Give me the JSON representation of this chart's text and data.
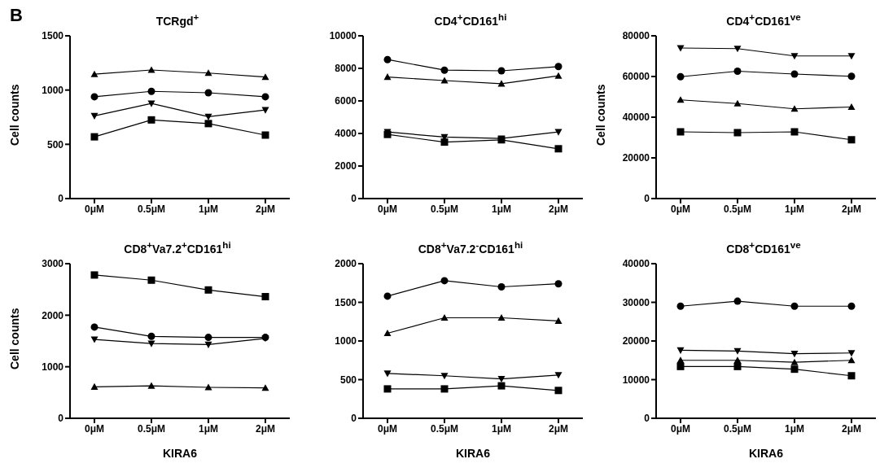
{
  "chart_data": [
    {
      "type": "line",
      "title": "TCRgd$^{+}$",
      "ylabel": "Cell counts",
      "annotations": [
        "B"
      ],
      "categories": [
        "0μM",
        "0.5μM",
        "1μM",
        "2μM"
      ],
      "ylim": [
        0,
        1500
      ],
      "yticks": [
        0,
        500,
        1000,
        1500
      ],
      "grid": false,
      "legend": false,
      "series": [
        {
          "color": "#000000",
          "marker": "triangle",
          "values": [
            1146,
            1185,
            1157,
            1120
          ]
        },
        {
          "color": "#000000",
          "marker": "circle",
          "values": [
            938,
            988,
            975,
            938
          ]
        },
        {
          "color": "#000000",
          "marker": "triangle-down",
          "values": [
            762,
            876,
            754,
            816
          ]
        },
        {
          "color": "#000000",
          "marker": "square",
          "values": [
            569,
            725,
            691,
            585
          ]
        }
      ]
    },
    {
      "type": "line",
      "title": "CD4$^{+}$CD161$^{hi}$",
      "categories": [
        "0μM",
        "0.5μM",
        "1μM",
        "2μM"
      ],
      "ylim": [
        0,
        10000
      ],
      "yticks": [
        0,
        2000,
        4000,
        6000,
        8000,
        10000
      ],
      "grid": false,
      "legend": false,
      "series": [
        {
          "color": "#000000",
          "marker": "circle",
          "values": [
            8540,
            7890,
            7850,
            8110
          ]
        },
        {
          "color": "#000000",
          "marker": "triangle",
          "values": [
            7470,
            7250,
            7060,
            7540
          ]
        },
        {
          "color": "#000000",
          "marker": "triangle-down",
          "values": [
            4090,
            3780,
            3690,
            4090
          ]
        },
        {
          "color": "#000000",
          "marker": "square",
          "values": [
            3940,
            3470,
            3610,
            3060
          ]
        }
      ]
    },
    {
      "type": "line",
      "title": "CD4$^{+}$CD161$^{ve}$",
      "ylabel": "Cell counts",
      "categories": [
        "0μM",
        "0.5μM",
        "1μM",
        "2μM"
      ],
      "ylim": [
        0,
        80000
      ],
      "yticks": [
        0,
        20000,
        40000,
        60000,
        80000
      ],
      "grid": false,
      "legend": false,
      "series": [
        {
          "color": "#000000",
          "marker": "triangle-down",
          "values": [
            74000,
            73700,
            70100,
            70100
          ]
        },
        {
          "color": "#000000",
          "marker": "circle",
          "values": [
            59900,
            62600,
            61200,
            60100
          ]
        },
        {
          "color": "#000000",
          "marker": "triangle",
          "values": [
            48500,
            46700,
            44100,
            45000
          ]
        },
        {
          "color": "#000000",
          "marker": "square",
          "values": [
            32800,
            32400,
            32800,
            28900
          ]
        }
      ]
    },
    {
      "type": "line",
      "title": "CD8$^{+}$Va7.2$^{+}$CD161$^{hi}$",
      "xlabel": "KIRA6",
      "ylabel": "Cell counts",
      "categories": [
        "0μM",
        "0.5μM",
        "1μM",
        "2μM"
      ],
      "ylim": [
        0,
        3000
      ],
      "yticks": [
        0,
        1000,
        2000,
        3000
      ],
      "grid": false,
      "legend": false,
      "series": [
        {
          "color": "#000000",
          "marker": "square",
          "values": [
            2780,
            2680,
            2490,
            2360
          ]
        },
        {
          "color": "#000000",
          "marker": "circle",
          "values": [
            1770,
            1590,
            1570,
            1570
          ]
        },
        {
          "color": "#000000",
          "marker": "triangle-down",
          "values": [
            1530,
            1450,
            1430,
            1550
          ]
        },
        {
          "color": "#000000",
          "marker": "triangle",
          "values": [
            610,
            630,
            600,
            590
          ]
        }
      ]
    },
    {
      "type": "line",
      "title": "CD8$^{+}$Va7.2$^{-}$CD161$^{hi}$",
      "xlabel": "KIRA6",
      "categories": [
        "0μM",
        "0.5μM",
        "1μM",
        "2μM"
      ],
      "ylim": [
        0,
        2000
      ],
      "yticks": [
        0,
        500,
        1000,
        1500,
        2000
      ],
      "grid": false,
      "legend": false,
      "series": [
        {
          "color": "#000000",
          "marker": "circle",
          "values": [
            1580,
            1780,
            1700,
            1740
          ]
        },
        {
          "color": "#000000",
          "marker": "triangle",
          "values": [
            1100,
            1300,
            1300,
            1260
          ]
        },
        {
          "color": "#000000",
          "marker": "triangle-down",
          "values": [
            580,
            550,
            510,
            560
          ]
        },
        {
          "color": "#000000",
          "marker": "square",
          "values": [
            380,
            380,
            420,
            360
          ]
        }
      ]
    },
    {
      "type": "line",
      "title": "CD8$^{+}$CD161$^{ve}$",
      "xlabel": "KIRA6",
      "categories": [
        "0μM",
        "0.5μM",
        "1μM",
        "2μM"
      ],
      "ylim": [
        0,
        40000
      ],
      "yticks": [
        0,
        10000,
        20000,
        30000,
        40000
      ],
      "grid": false,
      "legend": false,
      "series": [
        {
          "color": "#000000",
          "marker": "circle",
          "values": [
            29000,
            30300,
            29000,
            29000
          ]
        },
        {
          "color": "#000000",
          "marker": "triangle-down",
          "values": [
            17600,
            17400,
            16700,
            16900
          ]
        },
        {
          "color": "#000000",
          "marker": "triangle",
          "values": [
            15000,
            15000,
            14500,
            15000
          ]
        },
        {
          "color": "#000000",
          "marker": "square",
          "values": [
            13400,
            13400,
            12700,
            11000
          ]
        }
      ]
    }
  ]
}
